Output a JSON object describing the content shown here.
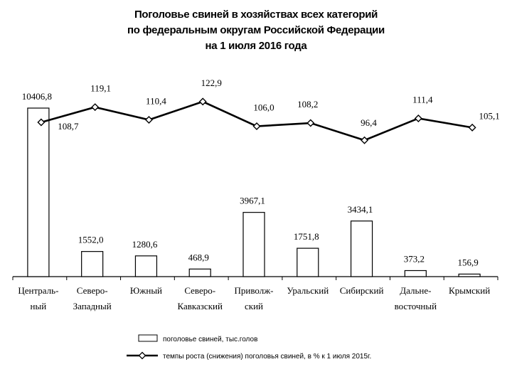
{
  "title_lines": [
    "Поголовье свиней в хозяйствах всех категорий",
    "по федеральным округам Российской Федерации",
    "на 1 июля 2016 года"
  ],
  "chart_data": {
    "type": "bar",
    "title": "Поголовье свиней в хозяйствах всех категорий по федеральным округам Российской Федерации на 1 июля 2016 года",
    "categories": [
      [
        "Централь-",
        "ный"
      ],
      [
        "Северо-",
        "Западный"
      ],
      [
        "Южный"
      ],
      [
        "Северо-",
        "Кавказский"
      ],
      [
        "Приволж-",
        "ский"
      ],
      [
        "Уральский"
      ],
      [
        "Сибирский"
      ],
      [
        "Дальне-",
        "восточный"
      ],
      [
        "Крымский"
      ]
    ],
    "series": [
      {
        "name": "поголовье свиней, тыс.голов",
        "type": "bar",
        "values": [
          10406.8,
          1552.0,
          1280.6,
          468.9,
          3967.1,
          1751.8,
          3434.1,
          373.2,
          156.9
        ],
        "labels": [
          "10406,8",
          "1552,0",
          "1280,6",
          "468,9",
          "3967,1",
          "1751,8",
          "3434,1",
          "373,2",
          "156,9"
        ]
      },
      {
        "name": "темпы роста (снижения) поголовья свиней, в % к 1 июля 2015г.",
        "type": "line",
        "values": [
          108.7,
          119.1,
          110.4,
          122.9,
          106.0,
          108.2,
          96.4,
          111.4,
          105.1
        ],
        "labels": [
          "108,7",
          "119,1",
          "110,4",
          "122,9",
          "106,0",
          "108,2",
          "96,4",
          "111,4",
          "105,1"
        ]
      }
    ],
    "xlabel": "",
    "ylabel": "",
    "legend_position": "bottom",
    "grid": false
  }
}
